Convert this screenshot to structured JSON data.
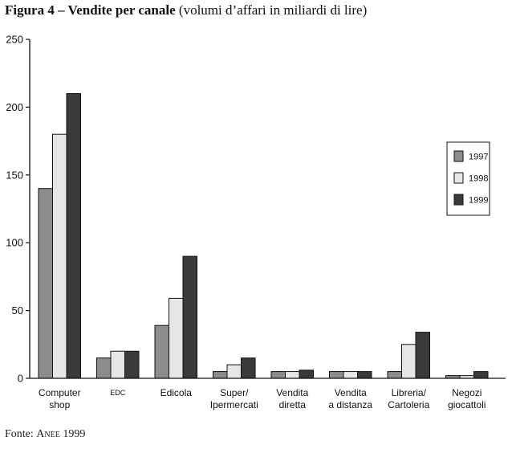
{
  "header": {
    "title_bold": "Figura 4 – Vendite per canale",
    "title_rest": "(volumi d’affari in miliardi di lire)"
  },
  "footer": {
    "source_prefix": "Fonte:",
    "source_org": "Anee",
    "source_year": "1999"
  },
  "colors": {
    "1997": "#8c8c8c",
    "1998": "#e6e6e6",
    "1999": "#3a3a3a",
    "axis": "#111111",
    "bar_stroke": "#111111"
  },
  "chart_data": {
    "type": "bar",
    "title": "",
    "xlabel": "",
    "ylabel": "",
    "ylim": [
      0,
      250
    ],
    "yticks": [
      0,
      50,
      100,
      150,
      200,
      250
    ],
    "grid": false,
    "legend_position": "right",
    "categories": [
      [
        "Computer",
        "shop"
      ],
      [
        "EDC"
      ],
      [
        "Edicola"
      ],
      [
        "Super/",
        "Ipermercati"
      ],
      [
        "Vendita",
        "diretta"
      ],
      [
        "Vendita",
        "a distanza"
      ],
      [
        "Libreria/",
        "Cartoleria"
      ],
      [
        "Negozi",
        "giocattoli"
      ]
    ],
    "series": [
      {
        "name": "1997",
        "values": [
          140,
          15,
          39,
          5,
          5,
          5,
          5,
          2
        ]
      },
      {
        "name": "1998",
        "values": [
          180,
          20,
          59,
          10,
          5,
          5,
          25,
          2
        ]
      },
      {
        "name": "1999",
        "values": [
          210,
          20,
          90,
          15,
          6,
          5,
          34,
          5
        ]
      }
    ]
  }
}
